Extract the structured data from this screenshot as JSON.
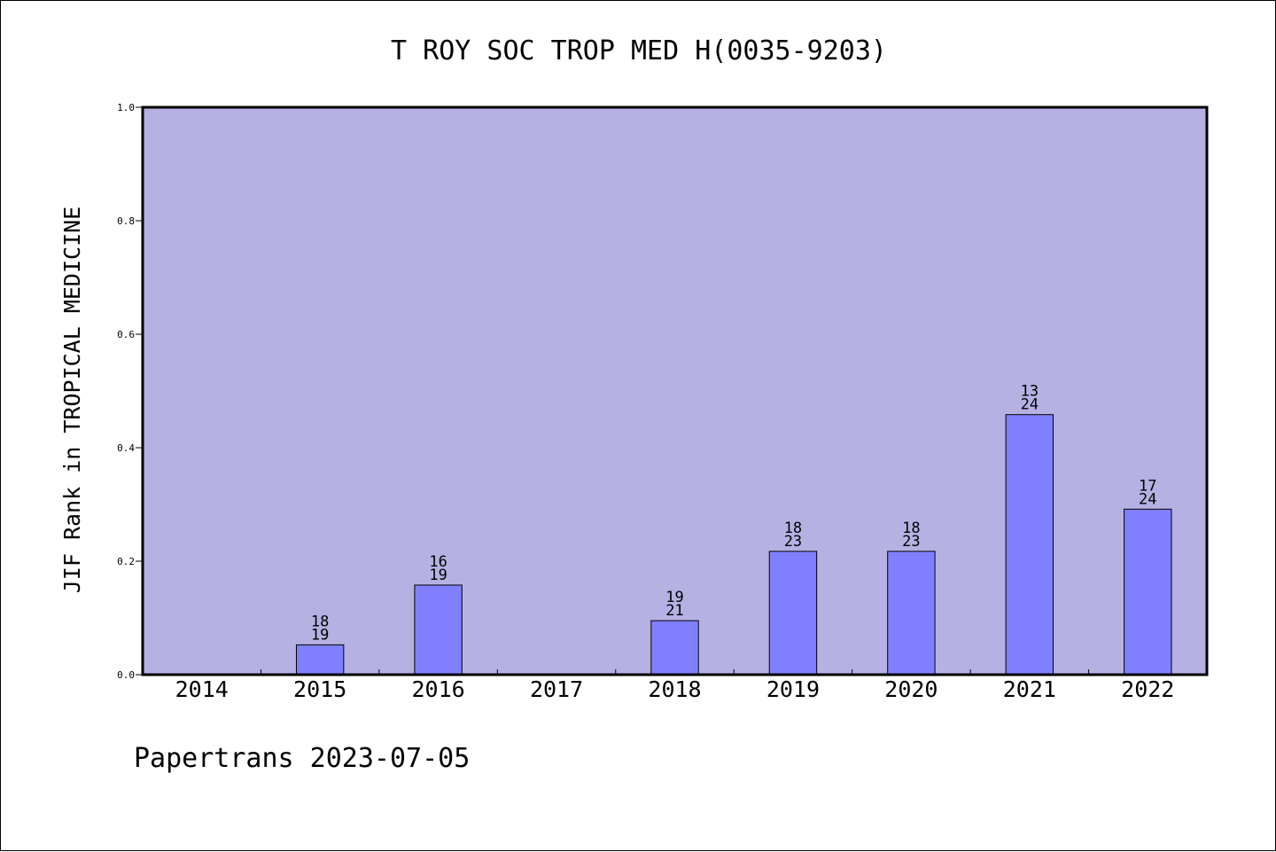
{
  "chart_data": {
    "type": "bar",
    "title": "T ROY SOC TROP MED H(0035-9203)",
    "ylabel": "JIF Rank in TROPICAL MEDICINE",
    "xlabel": "",
    "ylim": [
      0,
      1.0
    ],
    "yticks": [
      "0.0",
      "0.2",
      "0.4",
      "0.6",
      "0.8",
      "1.0"
    ],
    "categories": [
      "2014",
      "2015",
      "2016",
      "2017",
      "2018",
      "2019",
      "2020",
      "2021",
      "2022"
    ],
    "values": [
      0,
      0.0526,
      0.1579,
      0,
      0.0952,
      0.2174,
      0.2174,
      0.4583,
      0.2917
    ],
    "labels_rank": [
      "",
      "18",
      "16",
      "",
      "19",
      "18",
      "18",
      "13",
      "17"
    ],
    "labels_total": [
      "",
      "19",
      "19",
      "",
      "21",
      "23",
      "23",
      "24",
      "24"
    ],
    "grid": false,
    "colors": {
      "plot_background": "#b6b1e3",
      "bar_fill": "#8080ff",
      "bar_stroke": "#000000"
    }
  },
  "footer": "Papertrans 2023-07-05"
}
